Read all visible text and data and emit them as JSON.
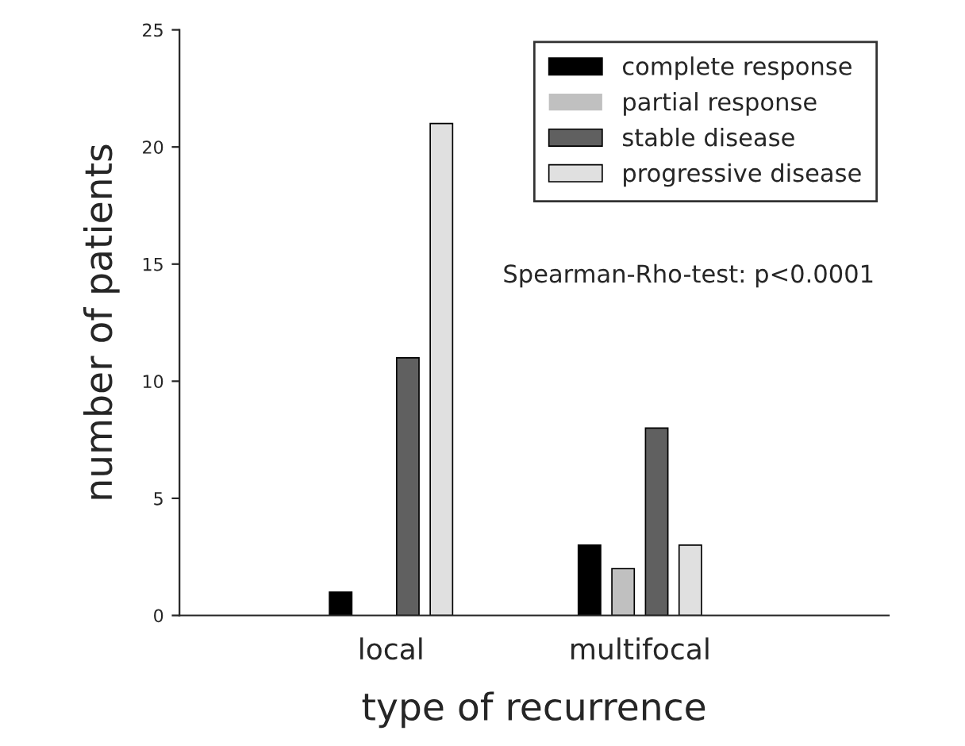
{
  "chart_data": {
    "type": "bar",
    "xlabel": "type of recurrence",
    "ylabel": "number of patients",
    "categories": [
      "local",
      "multifocal"
    ],
    "series": [
      {
        "name": "complete response",
        "color": "#000000",
        "values": [
          1,
          3
        ]
      },
      {
        "name": "partial response",
        "color": "#c0c0c0",
        "values": [
          0,
          2
        ]
      },
      {
        "name": "stable disease",
        "color": "#606060",
        "values": [
          11,
          8
        ]
      },
      {
        "name": "progressive disease",
        "color": "#e0e0e0",
        "values": [
          21,
          3
        ]
      }
    ],
    "ylim": [
      0,
      25
    ],
    "yticks": [
      0,
      5,
      10,
      15,
      20,
      25
    ],
    "grid": false,
    "legend": "top right",
    "annotations": [
      "Spearman-Rho-test: p<0.0001"
    ]
  }
}
